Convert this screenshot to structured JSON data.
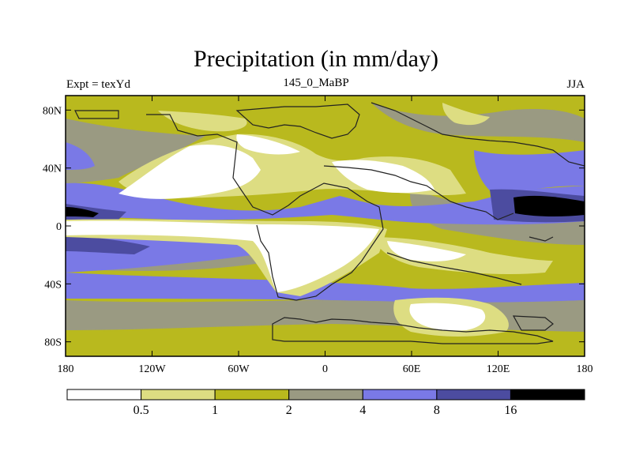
{
  "title": "Precipitation (in mm/day)",
  "left_label": "Expt = texYd",
  "center_label": "145_0_MaBP",
  "right_label": "JJA",
  "map": {
    "lat_ticks": [
      "80N",
      "40N",
      "0",
      "40S",
      "80S"
    ],
    "lon_ticks": [
      "180",
      "120W",
      "60W",
      "0",
      "60E",
      "120E",
      "180"
    ],
    "lat_tick_values": [
      80,
      40,
      0,
      -40,
      -80
    ],
    "lon_tick_values": [
      -180,
      -120,
      -60,
      0,
      60,
      120,
      180
    ],
    "lat_range": [
      -90,
      90
    ],
    "lon_range": [
      -180,
      180
    ]
  },
  "colorbar": {
    "levels": [
      "0.5",
      "1",
      "2",
      "4",
      "8",
      "16"
    ],
    "colors": [
      "#ffffff",
      "#dddd82",
      "#b9b91e",
      "#9a9a82",
      "#7a79e6",
      "#4c4ca0",
      "#000000"
    ]
  }
}
